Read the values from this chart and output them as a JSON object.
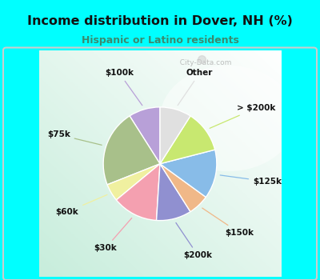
{
  "title": "Income distribution in Dover, NH (%)",
  "subtitle": "Hispanic or Latino residents",
  "title_color": "#111111",
  "subtitle_color": "#3a8a6e",
  "background_outer": "#00FFFF",
  "background_inner_color": "#c8edd8",
  "labels": [
    "$100k",
    "$75k",
    "$60k",
    "$30k",
    "$200k",
    "$150k",
    "$125k",
    "> $200k",
    "Other"
  ],
  "values": [
    9,
    22,
    5,
    13,
    10,
    6,
    14,
    12,
    9
  ],
  "colors": [
    "#b8a0d8",
    "#a8c08a",
    "#f0f0a0",
    "#f4a0b0",
    "#9090d0",
    "#f0b888",
    "#88bce8",
    "#c8e870",
    "#e0e0e0"
  ],
  "startangle": 90,
  "watermark": "  City-Data.com"
}
